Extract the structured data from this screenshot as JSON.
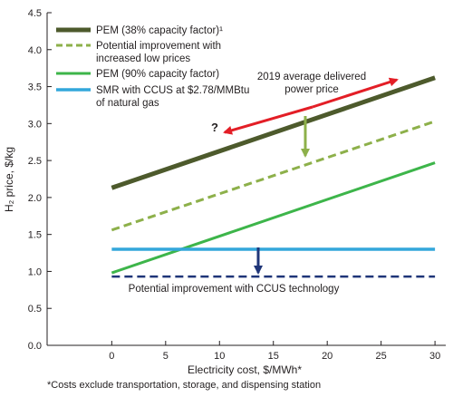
{
  "chart_data": {
    "type": "line",
    "xlabel": "Electricity cost, $/MWh*",
    "ylabel": "H₂ price, $/kg",
    "xlim": [
      -6,
      31
    ],
    "ylim": [
      0,
      4.5
    ],
    "x_ticks": [
      "0",
      "5",
      "10",
      "15",
      "20",
      "25",
      "30"
    ],
    "y_ticks": [
      "0.0",
      "0.5",
      "1.0",
      "1.5",
      "2.0",
      "2.5",
      "3.0",
      "3.5",
      "4.0",
      "4.5"
    ],
    "grid": false,
    "legend_position": "top-left",
    "series": [
      {
        "name": "PEM (38% capacity factor)¹",
        "color": "#4d5a2c",
        "style": "solid",
        "x": [
          0,
          30
        ],
        "y": [
          2.13,
          3.62
        ]
      },
      {
        "name": "Potential improvement with increased low prices",
        "color": "#8db04a",
        "style": "dashed",
        "x": [
          0,
          30
        ],
        "y": [
          1.56,
          3.03
        ]
      },
      {
        "name": "PEM (90% capacity factor)",
        "color": "#3db54a",
        "style": "solid",
        "x": [
          0,
          30
        ],
        "y": [
          0.98,
          2.47
        ]
      },
      {
        "name": "SMR with CCUS at $2.78/MMBtu of natural gas",
        "color": "#33a7db",
        "style": "solid",
        "x": [
          0,
          30
        ],
        "y": [
          1.3,
          1.3
        ]
      },
      {
        "name": "",
        "color": "#1f3578",
        "style": "dashed",
        "x": [
          0,
          30
        ],
        "y": [
          0.93,
          0.93
        ]
      }
    ],
    "annotations": {
      "power_price": "2019 average delivered power price",
      "question_mark": "?",
      "ccus_improvement": "Potential improvement with CCUS technology"
    },
    "footnote": "*Costs exclude transportation, storage, and dispensing station"
  },
  "colors": {
    "axis": "#231f20",
    "red_arrow": "#e31e26",
    "green_arrow": "#8db04a",
    "blue_arrow": "#1f3578"
  }
}
